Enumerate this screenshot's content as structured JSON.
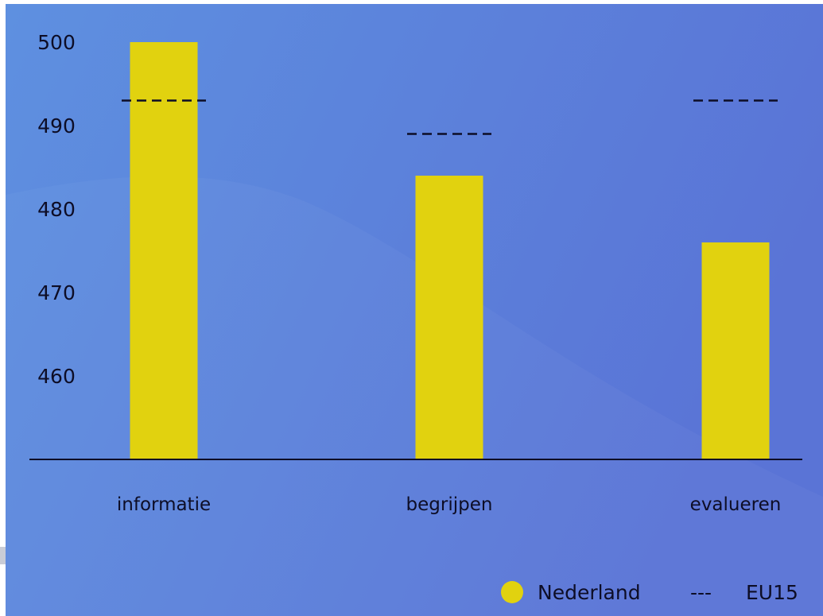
{
  "chart_data": {
    "type": "bar",
    "title": "",
    "xlabel": "",
    "ylabel": "",
    "categories": [
      "informatie",
      "begrijpen",
      "evalueren"
    ],
    "series": [
      {
        "name": "Nederland",
        "kind": "bar",
        "color": "#e1d20f",
        "values": [
          500,
          484,
          476
        ]
      },
      {
        "name": "EU15",
        "kind": "dashed-line",
        "color": "#0d0d26",
        "values": [
          493,
          489,
          493
        ]
      }
    ],
    "ylim": [
      450,
      501.5
    ],
    "yticks": [
      "460",
      "470",
      "480",
      "490",
      "500"
    ],
    "grid": false,
    "legend": "bottom-right",
    "legend_items": [
      {
        "label": "Nederland",
        "marker": "circle",
        "color": "#e1d20f"
      },
      {
        "label": "EU15",
        "marker": "dashes",
        "symbol": "---",
        "color": "#0d0d26"
      }
    ],
    "background_colors": [
      "#5e90e0",
      "#5a74d6"
    ]
  }
}
